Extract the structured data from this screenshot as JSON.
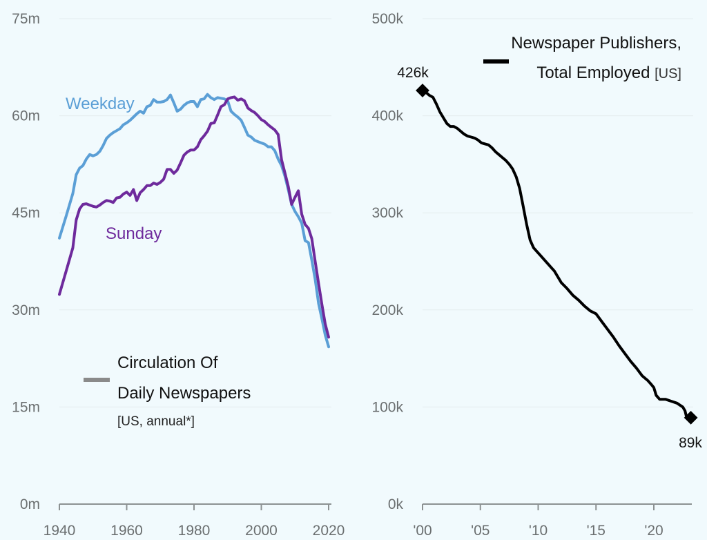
{
  "chart_data": [
    {
      "type": "line",
      "title": "Circulation Of Daily Newspapers",
      "subtitle": "[US, annual*]",
      "xlabel": "",
      "ylabel": "",
      "xlim": [
        1940,
        2020
      ],
      "ylim": [
        0,
        75
      ],
      "xticks": [
        1940,
        1960,
        1980,
        2000,
        2020
      ],
      "xtick_labels": [
        "1940",
        "1960",
        "1980",
        "2000",
        "2020"
      ],
      "yticks": [
        0,
        15,
        30,
        45,
        60,
        75
      ],
      "ytick_labels": [
        "0m",
        "15m",
        "30m",
        "45m",
        "60m",
        "75m"
      ],
      "grid": true,
      "legend_swatch_color": "#8a8a8a",
      "legend_placement": "bottom-left",
      "series": [
        {
          "name": "Weekday",
          "color": "#5b9fd6",
          "x": [
            1940,
            1942,
            1944,
            1945,
            1946,
            1947,
            1948,
            1949,
            1950,
            1951,
            1952,
            1953,
            1954,
            1955,
            1956,
            1957,
            1958,
            1959,
            1960,
            1961,
            1962,
            1963,
            1964,
            1965,
            1966,
            1967,
            1968,
            1969,
            1970,
            1971,
            1972,
            1973,
            1974,
            1975,
            1976,
            1977,
            1978,
            1979,
            1980,
            1981,
            1982,
            1983,
            1984,
            1985,
            1986,
            1987,
            1988,
            1989,
            1990,
            1991,
            1992,
            1993,
            1994,
            1995,
            1996,
            1997,
            1998,
            1999,
            2000,
            2001,
            2002,
            2003,
            2004,
            2005,
            2006,
            2007,
            2008,
            2009,
            2010,
            2011,
            2012,
            2013,
            2014,
            2015,
            2016,
            2017,
            2018,
            2019,
            2020
          ],
          "values": [
            41.1,
            44.5,
            48.0,
            50.9,
            51.9,
            52.3,
            53.3,
            54.0,
            53.8,
            54.0,
            54.5,
            55.4,
            56.5,
            57.0,
            57.4,
            57.7,
            58.0,
            58.6,
            58.9,
            59.3,
            59.8,
            60.3,
            60.7,
            60.4,
            61.4,
            61.6,
            62.5,
            62.1,
            62.1,
            62.2,
            62.5,
            63.2,
            62.0,
            60.7,
            61.0,
            61.6,
            62.0,
            62.2,
            62.2,
            61.4,
            62.5,
            62.6,
            63.3,
            62.8,
            62.5,
            62.8,
            62.7,
            62.6,
            62.3,
            60.7,
            60.2,
            59.8,
            59.3,
            58.2,
            57.0,
            56.7,
            56.2,
            56.0,
            55.8,
            55.6,
            55.2,
            55.2,
            54.6,
            53.3,
            52.3,
            50.7,
            48.6,
            46.3,
            45.2,
            44.4,
            43.4,
            40.7,
            40.4,
            37.7,
            34.7,
            31.0,
            28.6,
            26.1,
            24.3
          ]
        },
        {
          "name": "Sunday",
          "color": "#6e2a9c",
          "x": [
            1940,
            1942,
            1944,
            1945,
            1946,
            1947,
            1948,
            1949,
            1950,
            1951,
            1952,
            1953,
            1954,
            1955,
            1956,
            1957,
            1958,
            1959,
            1960,
            1961,
            1962,
            1963,
            1964,
            1965,
            1966,
            1967,
            1968,
            1969,
            1970,
            1971,
            1972,
            1973,
            1974,
            1975,
            1976,
            1977,
            1978,
            1979,
            1980,
            1981,
            1982,
            1983,
            1984,
            1985,
            1986,
            1987,
            1988,
            1989,
            1990,
            1991,
            1992,
            1993,
            1994,
            1995,
            1996,
            1997,
            1998,
            1999,
            2000,
            2001,
            2002,
            2003,
            2004,
            2005,
            2006,
            2007,
            2008,
            2009,
            2010,
            2011,
            2012,
            2013,
            2014,
            2015,
            2016,
            2017,
            2018,
            2019,
            2020
          ],
          "values": [
            32.4,
            36.0,
            39.6,
            43.9,
            45.6,
            46.3,
            46.4,
            46.2,
            46.0,
            45.9,
            46.2,
            46.6,
            46.9,
            46.8,
            46.6,
            47.3,
            47.4,
            47.9,
            48.2,
            47.7,
            48.6,
            46.9,
            48.1,
            48.6,
            49.2,
            49.2,
            49.6,
            49.4,
            49.7,
            50.2,
            51.7,
            51.7,
            51.1,
            51.6,
            52.7,
            53.9,
            54.4,
            54.7,
            54.7,
            55.2,
            56.3,
            56.9,
            57.6,
            58.8,
            58.9,
            60.1,
            61.4,
            61.7,
            62.6,
            62.8,
            62.9,
            62.4,
            62.6,
            62.3,
            61.2,
            60.8,
            60.5,
            60.0,
            59.4,
            59.1,
            58.6,
            58.2,
            57.8,
            57.1,
            53.2,
            51.2,
            49.1,
            46.3,
            47.4,
            48.4,
            44.8,
            43.2,
            42.6,
            41.0,
            37.5,
            34.1,
            30.8,
            27.8,
            25.8
          ]
        }
      ]
    },
    {
      "type": "line",
      "title": "Newspaper Publishers, Total Employed",
      "title_suffix": "[US]",
      "title_line1": "Newspaper Publishers,",
      "title_line2": "Total Employed",
      "xlabel": "",
      "ylabel": "",
      "xlim": [
        2000,
        2023.3
      ],
      "ylim": [
        0,
        500
      ],
      "xticks": [
        2000,
        2005,
        2010,
        2015,
        2020
      ],
      "xtick_labels": [
        "'00",
        "'05",
        "'10",
        "'15",
        "'20"
      ],
      "yticks": [
        0,
        100,
        200,
        300,
        400,
        500
      ],
      "ytick_labels": [
        "0k",
        "100k",
        "200k",
        "300k",
        "400k",
        "500k"
      ],
      "grid": true,
      "legend_swatch_color": "#000000",
      "legend_placement": "top-right",
      "annotations": [
        {
          "label": "426k",
          "x": 2000.0,
          "y": 426
        },
        {
          "label": "89k",
          "x": 2023.2,
          "y": 89
        }
      ],
      "series": [
        {
          "name": "Newspaper Publishers, Total Employed",
          "color": "#000000",
          "x": [
            2000.0,
            2000.3,
            2000.6,
            2000.9,
            2001.2,
            2001.5,
            2001.8,
            2002.1,
            2002.4,
            2002.7,
            2003.0,
            2003.3,
            2003.6,
            2003.9,
            2004.2,
            2004.5,
            2004.8,
            2005.1,
            2005.4,
            2005.7,
            2006.0,
            2006.3,
            2006.6,
            2006.9,
            2007.2,
            2007.5,
            2007.8,
            2008.1,
            2008.4,
            2008.7,
            2009.0,
            2009.3,
            2009.6,
            2009.9,
            2010.2,
            2010.5,
            2010.8,
            2011.1,
            2011.4,
            2011.7,
            2012.0,
            2012.5,
            2013.0,
            2013.5,
            2014.0,
            2014.5,
            2015.0,
            2015.5,
            2016.0,
            2016.5,
            2017.0,
            2017.5,
            2018.0,
            2018.5,
            2019.0,
            2019.5,
            2019.8,
            2020.0,
            2020.2,
            2020.5,
            2021.0,
            2021.5,
            2022.0,
            2022.5,
            2022.7,
            2022.8,
            2023.2
          ],
          "values": [
            426,
            424,
            421,
            419,
            412,
            404,
            398,
            392,
            389,
            389,
            387,
            384,
            381,
            379,
            378,
            377,
            375,
            372,
            371,
            370,
            367,
            363,
            360,
            357,
            354,
            350,
            345,
            337,
            325,
            307,
            288,
            272,
            264,
            260,
            256,
            252,
            248,
            244,
            240,
            234,
            228,
            222,
            215,
            210,
            204,
            199,
            196,
            188,
            180,
            172,
            163,
            155,
            147,
            140,
            132,
            127,
            123,
            120,
            112,
            108,
            108,
            106,
            104,
            100,
            96,
            91,
            89
          ]
        }
      ]
    }
  ]
}
